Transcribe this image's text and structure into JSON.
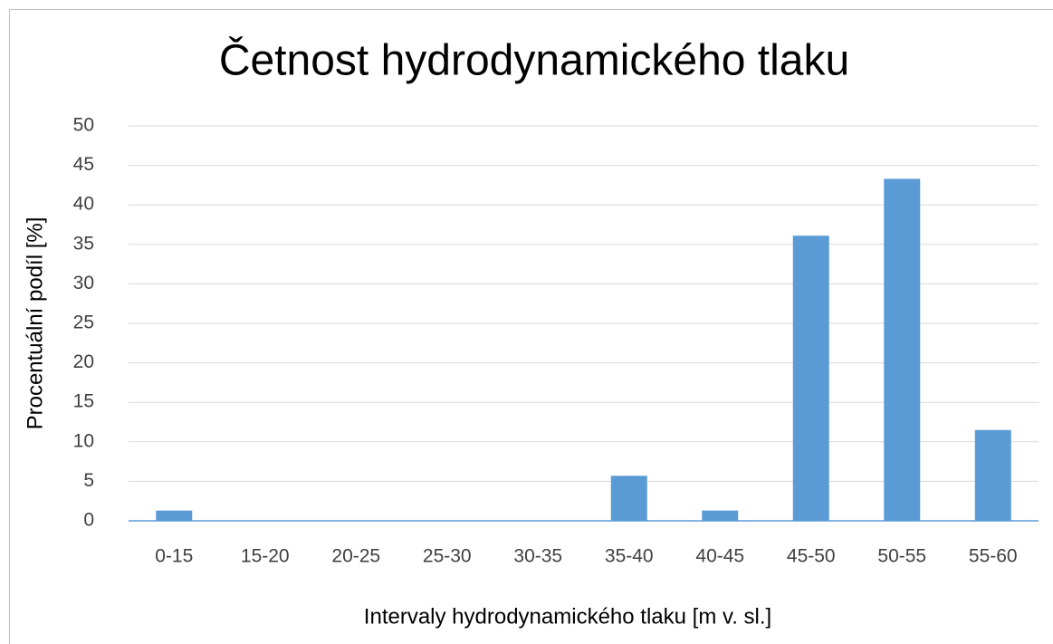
{
  "chart_data": {
    "type": "bar",
    "title": "Četnost hydrodynamického tlaku",
    "xlabel": "Intervaly hydrodynamického tlaku [m v. sl.]",
    "ylabel": "Procentuální podíl [%]",
    "categories": [
      "0-15",
      "15-20",
      "20-25",
      "25-30",
      "30-35",
      "35-40",
      "40-45",
      "45-50",
      "50-55",
      "55-60"
    ],
    "values": [
      1.3,
      0,
      0,
      0,
      0,
      5.7,
      1.3,
      36.1,
      43.3,
      11.5
    ],
    "color": "#5b9bd5",
    "ylim": [
      0,
      50
    ],
    "yticks": [
      0,
      5,
      10,
      15,
      20,
      25,
      30,
      35,
      40,
      45,
      50
    ],
    "grid": true
  }
}
